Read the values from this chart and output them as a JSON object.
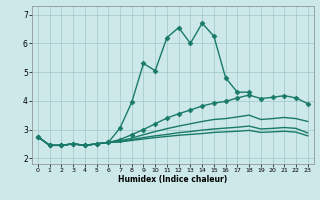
{
  "title": "",
  "xlabel": "Humidex (Indice chaleur)",
  "bg_color": "#cce8e8",
  "grid_color": "#a0c8c8",
  "line_color": "#1a7a6a",
  "xlim": [
    -0.5,
    23.5
  ],
  "ylim": [
    1.8,
    7.3
  ],
  "yticks": [
    2,
    3,
    4,
    5,
    6,
    7
  ],
  "xticks": [
    0,
    1,
    2,
    3,
    4,
    5,
    6,
    7,
    8,
    9,
    10,
    11,
    12,
    13,
    14,
    15,
    16,
    17,
    18,
    19,
    20,
    21,
    22,
    23
  ],
  "lines": [
    {
      "x": [
        0,
        1,
        2,
        3,
        4,
        5,
        6,
        7,
        8,
        9,
        10,
        11,
        12,
        13,
        14,
        15,
        16,
        17,
        18
      ],
      "y": [
        2.75,
        2.45,
        2.45,
        2.5,
        2.45,
        2.5,
        2.55,
        3.05,
        3.95,
        5.3,
        5.05,
        6.2,
        6.55,
        6.0,
        6.7,
        6.25,
        4.8,
        4.3,
        4.3
      ],
      "marker": "D",
      "markersize": 2.5,
      "lw": 1.0
    },
    {
      "x": [
        0,
        1,
        2,
        3,
        4,
        5,
        6,
        7,
        8,
        9,
        10,
        11,
        12,
        13,
        14,
        15,
        16,
        17,
        18,
        19,
        20,
        21,
        22,
        23
      ],
      "y": [
        2.75,
        2.45,
        2.45,
        2.5,
        2.45,
        2.5,
        2.55,
        2.65,
        2.82,
        3.0,
        3.2,
        3.4,
        3.55,
        3.68,
        3.82,
        3.92,
        3.98,
        4.1,
        4.2,
        4.08,
        4.12,
        4.18,
        4.1,
        3.9
      ],
      "marker": "D",
      "markersize": 2.5,
      "lw": 1.0
    },
    {
      "x": [
        0,
        1,
        2,
        3,
        4,
        5,
        6,
        7,
        8,
        9,
        10,
        11,
        12,
        13,
        14,
        15,
        16,
        17,
        18,
        19,
        20,
        21,
        22,
        23
      ],
      "y": [
        2.75,
        2.45,
        2.45,
        2.5,
        2.45,
        2.5,
        2.55,
        2.6,
        2.7,
        2.82,
        2.93,
        3.03,
        3.12,
        3.2,
        3.28,
        3.35,
        3.38,
        3.44,
        3.5,
        3.35,
        3.38,
        3.42,
        3.38,
        3.28
      ],
      "marker": null,
      "markersize": 0,
      "lw": 1.0
    },
    {
      "x": [
        0,
        1,
        2,
        3,
        4,
        5,
        6,
        7,
        8,
        9,
        10,
        11,
        12,
        13,
        14,
        15,
        16,
        17,
        18,
        19,
        20,
        21,
        22,
        23
      ],
      "y": [
        2.75,
        2.45,
        2.45,
        2.5,
        2.45,
        2.5,
        2.55,
        2.58,
        2.65,
        2.72,
        2.78,
        2.83,
        2.89,
        2.93,
        2.98,
        3.02,
        3.05,
        3.08,
        3.12,
        3.02,
        3.04,
        3.07,
        3.04,
        2.88
      ],
      "marker": null,
      "markersize": 0,
      "lw": 1.0
    },
    {
      "x": [
        0,
        1,
        2,
        3,
        4,
        5,
        6,
        7,
        8,
        9,
        10,
        11,
        12,
        13,
        14,
        15,
        16,
        17,
        18,
        19,
        20,
        21,
        22,
        23
      ],
      "y": [
        2.75,
        2.45,
        2.45,
        2.5,
        2.45,
        2.5,
        2.55,
        2.57,
        2.62,
        2.67,
        2.72,
        2.76,
        2.8,
        2.83,
        2.86,
        2.9,
        2.92,
        2.94,
        2.97,
        2.9,
        2.92,
        2.94,
        2.91,
        2.78
      ],
      "marker": null,
      "markersize": 0,
      "lw": 1.0
    }
  ]
}
